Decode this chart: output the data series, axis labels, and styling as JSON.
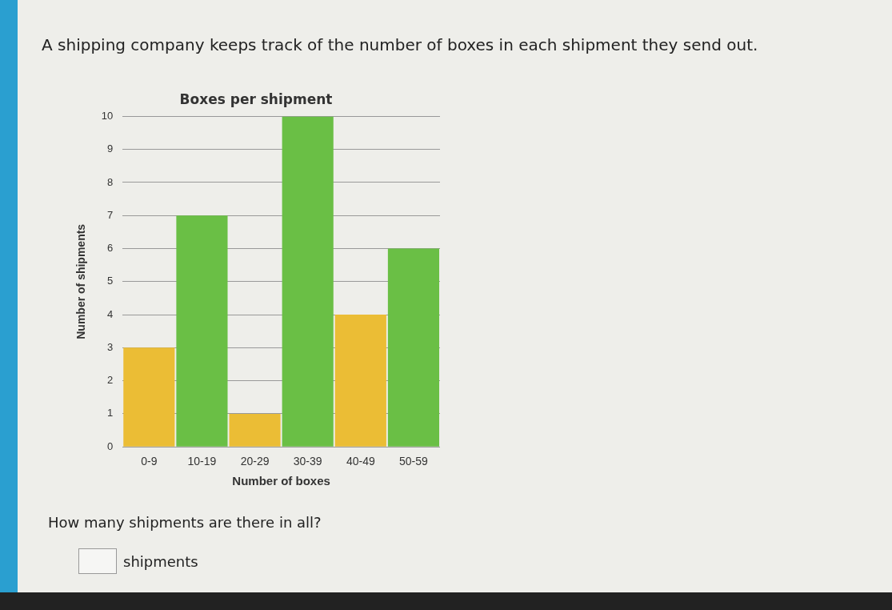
{
  "chart_data": {
    "type": "bar",
    "title": "Boxes per shipment",
    "subtitle": "A shipping company keeps track of the number of boxes in each shipment they send out.",
    "xlabel": "Number of boxes",
    "ylabel": "Number of shipments",
    "categories": [
      "0-9",
      "10-19",
      "20-29",
      "30-39",
      "40-49",
      "50-59"
    ],
    "values": [
      3,
      7,
      1,
      10,
      4,
      6
    ],
    "colors": [
      "#ebbd35",
      "#6abf45",
      "#ebbd35",
      "#6abf45",
      "#ebbd35",
      "#6abf45"
    ],
    "ylim": [
      0,
      10
    ],
    "yticks": [
      0,
      1,
      2,
      3,
      4,
      5,
      6,
      7,
      8,
      9,
      10
    ],
    "grid": "y",
    "legend": false,
    "annotations": [
      "How many shipments are there in all?",
      "shipments"
    ]
  }
}
